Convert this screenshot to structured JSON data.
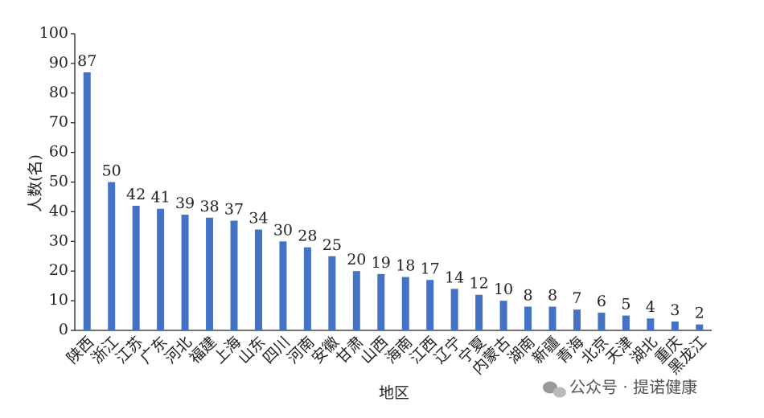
{
  "chart_data": {
    "type": "bar",
    "y_label": "人数(名)",
    "x_label": "地区",
    "categories": [
      "陕西",
      "浙江",
      "江苏",
      "广东",
      "河北",
      "福建",
      "上海",
      "山东",
      "四川",
      "河南",
      "安徽",
      "甘肃",
      "山西",
      "海南",
      "江西",
      "辽宁",
      "宁夏",
      "内蒙古",
      "湖南",
      "新疆",
      "青海",
      "北京",
      "天津",
      "湖北",
      "重庆",
      "黑龙江"
    ],
    "values": [
      87,
      50,
      42,
      41,
      39,
      38,
      37,
      34,
      30,
      28,
      25,
      20,
      19,
      18,
      17,
      14,
      12,
      10,
      8,
      8,
      7,
      6,
      5,
      4,
      3,
      2
    ],
    "color": "#4472c4",
    "ylim": [
      0,
      100
    ],
    "yticks": [
      0,
      10,
      20,
      30,
      40,
      50,
      60,
      70,
      80,
      90,
      100
    ],
    "watermark": "公众号 · 提诺健康"
  }
}
